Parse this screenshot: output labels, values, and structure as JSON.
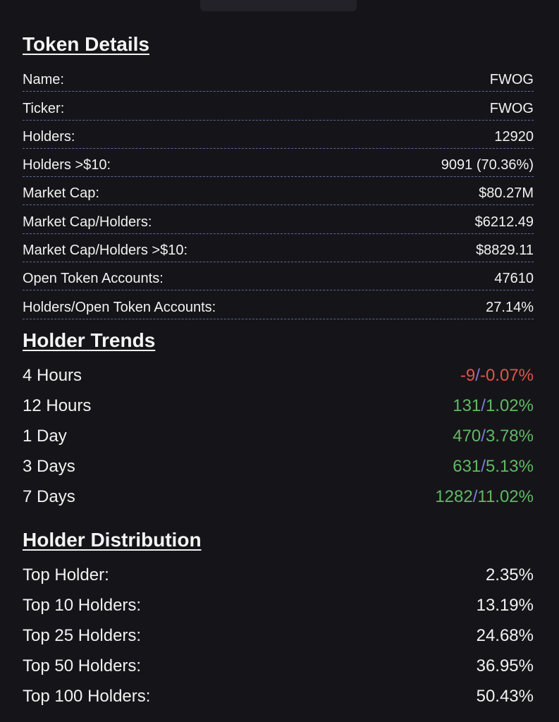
{
  "token_details": {
    "title": "Token Details",
    "rows": [
      {
        "label": "Name:",
        "value": "FWOG"
      },
      {
        "label": "Ticker:",
        "value": "FWOG"
      },
      {
        "label": "Holders:",
        "value": "12920"
      },
      {
        "label": "Holders >$10:",
        "value": "9091 (70.36%)"
      },
      {
        "label": "Market Cap:",
        "value": "$80.27M"
      },
      {
        "label": "Market Cap/Holders:",
        "value": "$6212.49"
      },
      {
        "label": "Market Cap/Holders >$10:",
        "value": "$8829.11"
      },
      {
        "label": "Open Token Accounts:",
        "value": "47610"
      },
      {
        "label": "Holders/Open Token Accounts:",
        "value": "27.14%"
      }
    ]
  },
  "holder_trends": {
    "title": "Holder Trends",
    "separator": "/",
    "rows": [
      {
        "label": "4 Hours",
        "count": "-9",
        "percent": "-0.07%",
        "trend": "negative"
      },
      {
        "label": "12 Hours",
        "count": "131",
        "percent": "1.02%",
        "trend": "positive"
      },
      {
        "label": "1 Day",
        "count": "470",
        "percent": "3.78%",
        "trend": "positive"
      },
      {
        "label": "3 Days",
        "count": "631",
        "percent": "5.13%",
        "trend": "positive"
      },
      {
        "label": "7 Days",
        "count": "1282",
        "percent": "11.02%",
        "trend": "positive"
      }
    ]
  },
  "holder_distribution": {
    "title": "Holder Distribution",
    "rows": [
      {
        "label": "Top Holder:",
        "value": "2.35%"
      },
      {
        "label": "Top 10 Holders:",
        "value": "13.19%"
      },
      {
        "label": "Top 25 Holders:",
        "value": "24.68%"
      },
      {
        "label": "Top 50 Holders:",
        "value": "36.95%"
      },
      {
        "label": "Top 100 Holders:",
        "value": "50.43%"
      }
    ]
  },
  "colors": {
    "background": "#151519",
    "positive": "#62b865",
    "negative": "#e4534a",
    "separator": "#7d7ddb",
    "dashed_rule": "#5b6a9a"
  }
}
